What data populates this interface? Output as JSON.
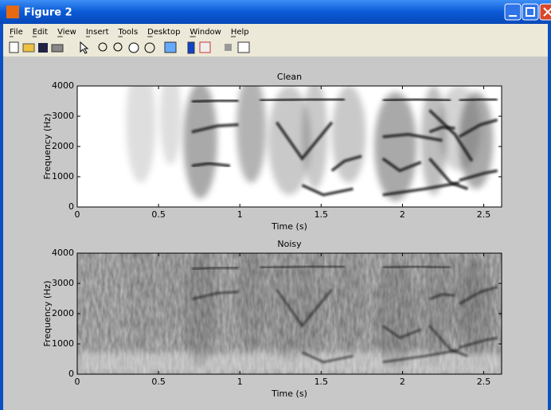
{
  "window": {
    "title": "Figure 2",
    "menu": [
      "File",
      "Edit",
      "View",
      "Insert",
      "Tools",
      "Desktop",
      "Window",
      "Help"
    ]
  },
  "chart_data": [
    {
      "type": "spectrogram",
      "title": "Clean",
      "x_label": "Time (s)",
      "y_label": "Frequency (Hz)",
      "colormap": "gray",
      "xlim": [
        0,
        2.61
      ],
      "ylim": [
        0,
        4000
      ],
      "xticks": [
        0,
        0.5,
        1,
        1.5,
        2,
        2.5
      ],
      "yticks": [
        0,
        1000,
        2000,
        3000,
        4000
      ]
    },
    {
      "type": "spectrogram",
      "title": "Noisy",
      "x_label": "Time (s)",
      "y_label": "Frequency (Hz)",
      "colormap": "gray",
      "xlim": [
        0,
        2.61
      ],
      "ylim": [
        0,
        4000
      ],
      "xticks": [
        0,
        0.5,
        1,
        1.5,
        2,
        2.5
      ],
      "yticks": [
        0,
        1000,
        2000,
        3000,
        4000
      ]
    }
  ]
}
